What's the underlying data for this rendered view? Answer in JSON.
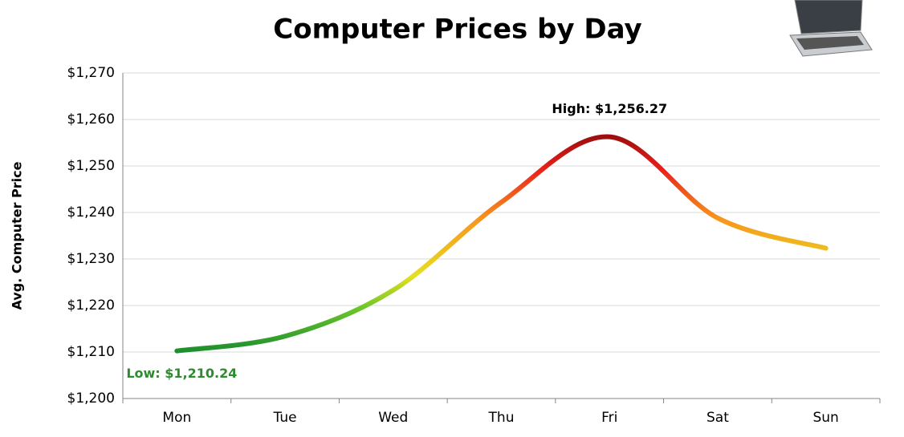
{
  "chart_data": {
    "type": "line",
    "title": "Computer Prices by Day",
    "y_label": "Avg. Computer Price",
    "categories": [
      "Mon",
      "Tue",
      "Wed",
      "Thu",
      "Fri",
      "Sat",
      "Sun"
    ],
    "values": [
      1210.24,
      1213.4,
      1223.3,
      1242.2,
      1256.27,
      1238.8,
      1232.3
    ],
    "ylim": [
      1200,
      1270
    ],
    "yticks": [
      {
        "value": 1200,
        "label": "$1,200"
      },
      {
        "value": 1210,
        "label": "$1,210"
      },
      {
        "value": 1220,
        "label": "$1,220"
      },
      {
        "value": 1230,
        "label": "$1,230"
      },
      {
        "value": 1240,
        "label": "$1,240"
      },
      {
        "value": 1250,
        "label": "$1,250"
      },
      {
        "value": 1260,
        "label": "$1,260"
      },
      {
        "value": 1270,
        "label": "$1,270"
      }
    ],
    "grid": true,
    "annotations": [
      {
        "text": "High: $1,256.27",
        "color": "#000000"
      },
      {
        "text": "Low: $1,210.24",
        "color": "#2e8b2e"
      }
    ]
  }
}
